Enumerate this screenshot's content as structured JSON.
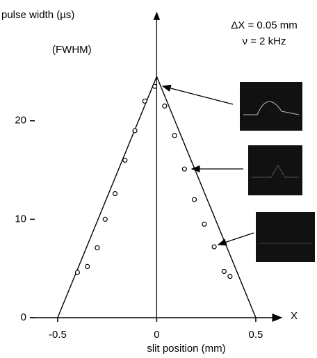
{
  "chart_data": {
    "type": "scatter",
    "y_label": "pulse width (µs)",
    "x_label": "slit position  (mm)",
    "x_axis_name": "X",
    "annotations": [
      "(FWHM)",
      "ΔX = 0.05 mm",
      "ν = 2 kHz"
    ],
    "x": [
      -0.4,
      -0.35,
      -0.3,
      -0.26,
      -0.21,
      -0.16,
      -0.11,
      -0.06,
      -0.01,
      0.04,
      0.09,
      0.14,
      0.19,
      0.24,
      0.29,
      0.34,
      0.37
    ],
    "values": [
      4.6,
      5.2,
      7.1,
      10.0,
      12.6,
      16.0,
      19.0,
      22.0,
      23.5,
      21.5,
      18.5,
      15.1,
      12.0,
      9.5,
      7.2,
      4.7,
      4.2
    ],
    "color": "#000000",
    "lines": [
      {
        "x": [
          -0.5,
          0,
          0.5
        ],
        "values": [
          0,
          24.5,
          0
        ],
        "color": "#000000"
      }
    ],
    "xlim": [
      -0.64,
      0.63
    ],
    "ylim": [
      0,
      31
    ],
    "xticks": [
      -0.5,
      0,
      0.5
    ],
    "yticks": [
      0,
      10,
      20
    ]
  }
}
